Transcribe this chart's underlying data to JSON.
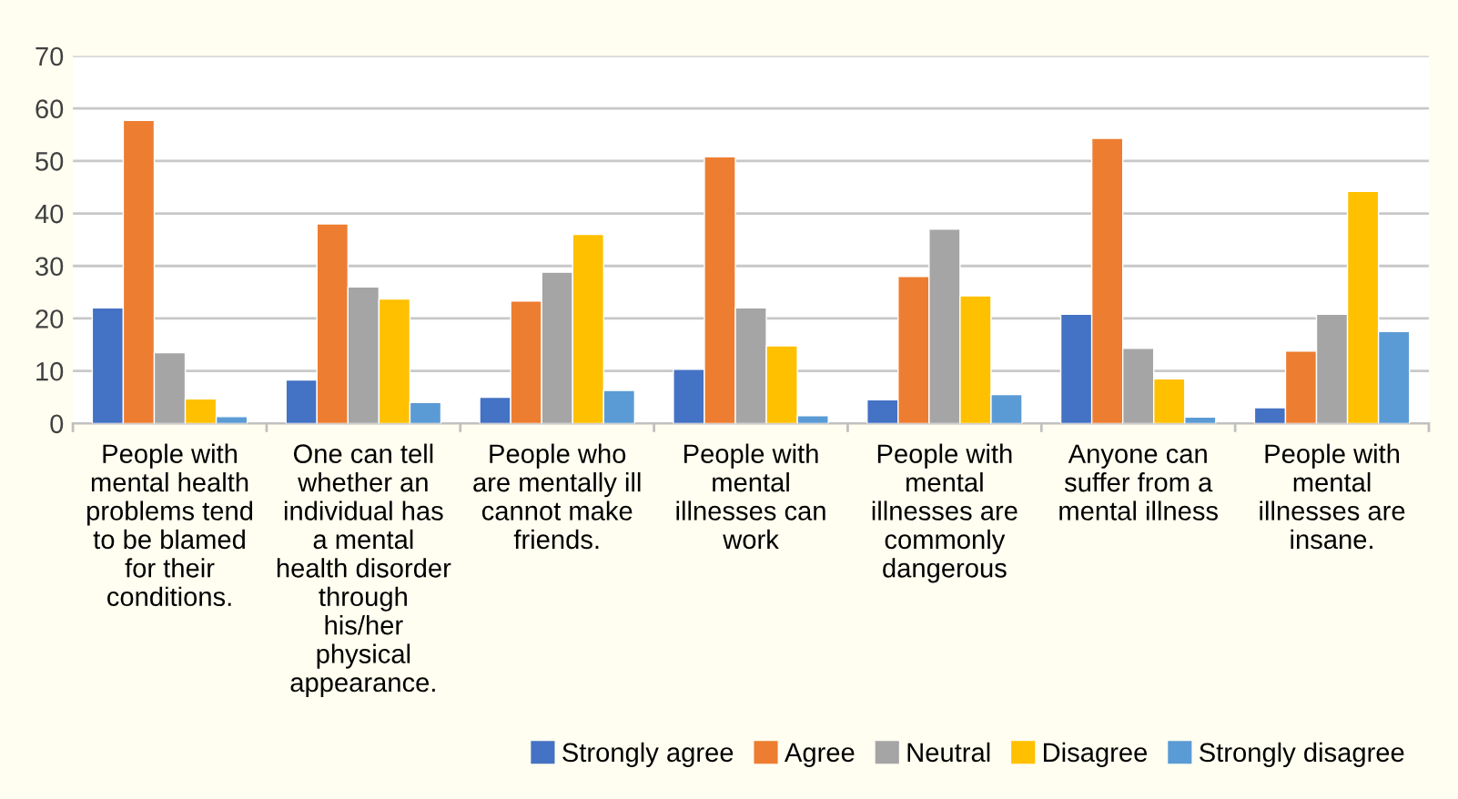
{
  "chart_data": {
    "type": "bar",
    "categories": [
      "People with\nmental health\nproblems tend\nto be blamed\nfor their\nconditions.",
      "One can tell\nwhether an\nindividual has\na mental\nhealth disorder\nthrough\nhis/her\nphysical\nappearance.",
      "People who\nare mentally ill\ncannot make\nfriends.",
      "People with\nmental\nillnesses can\nwork",
      "People with\nmental\nillnesses are\ncommonly\ndangerous",
      "Anyone can\nsuffer from a\nmental illness",
      "People with\nmental\nillnesses are\ninsane."
    ],
    "series": [
      {
        "name": "Strongly agree",
        "color": "#4472c4",
        "values": [
          22,
          8.3,
          5,
          10.3,
          4.5,
          20.8,
          3
        ]
      },
      {
        "name": "Agree",
        "color": "#ed7d31",
        "values": [
          57.7,
          38,
          23.3,
          50.8,
          28,
          54.3,
          13.8
        ]
      },
      {
        "name": "Neutral",
        "color": "#a5a5a5",
        "values": [
          13.5,
          26,
          28.8,
          22,
          37,
          14.3,
          20.8
        ]
      },
      {
        "name": "Disagree",
        "color": "#ffc000",
        "values": [
          4.7,
          23.7,
          36,
          14.8,
          24.3,
          8.5,
          44.2
        ]
      },
      {
        "name": "Strongly disagree",
        "color": "#5b9bd5",
        "values": [
          1.3,
          4,
          6.3,
          1.5,
          5.5,
          1.2,
          17.5
        ]
      }
    ],
    "ylim": [
      0,
      70
    ],
    "yticks": [
      0,
      10,
      20,
      30,
      40,
      50,
      60,
      70
    ],
    "grid": "y",
    "legend": "bottom right"
  }
}
